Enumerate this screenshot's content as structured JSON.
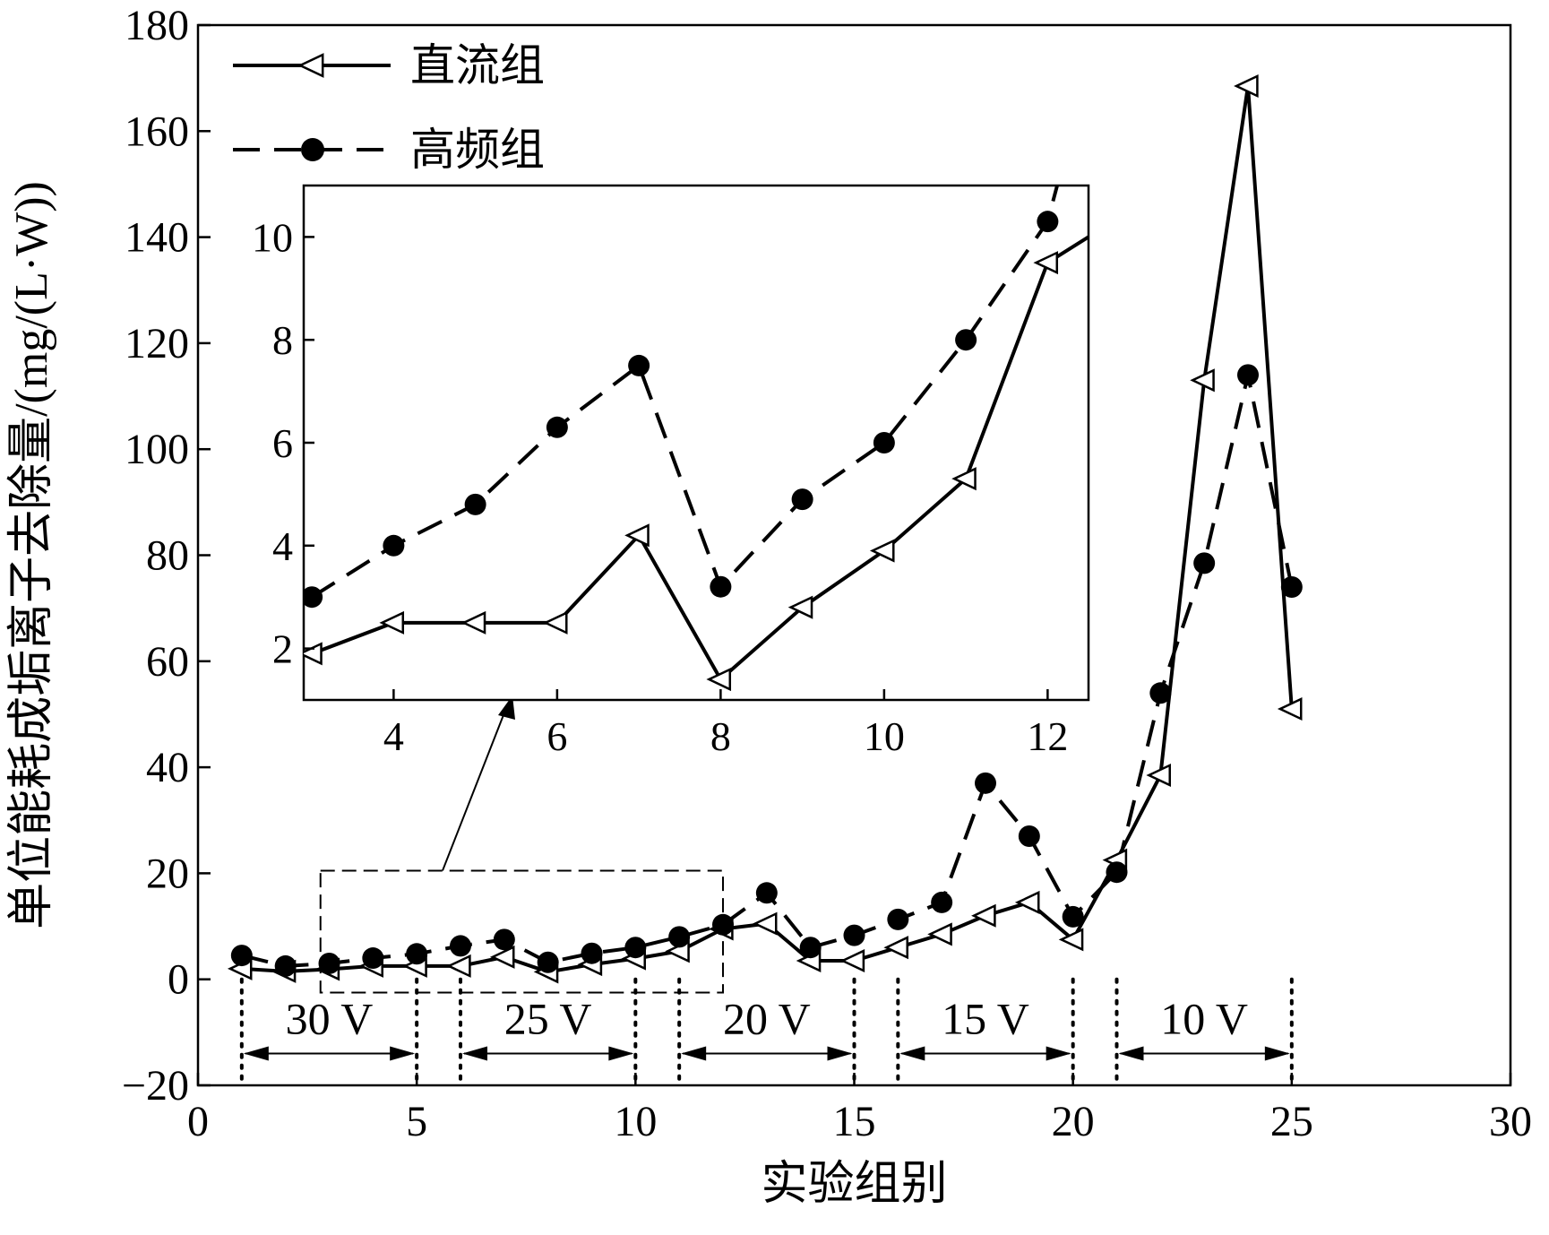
{
  "chart_data": {
    "type": "line",
    "title": "",
    "xlabel": "实验组别",
    "ylabel": "单位能耗成垢离子去除量/(mg/(L·W))",
    "xlim": [
      0,
      30
    ],
    "ylim": [
      -20,
      180
    ],
    "xticks": [
      "0",
      "5",
      "10",
      "15",
      "20",
      "25",
      "30"
    ],
    "yticks": [
      "−20",
      "0",
      "20",
      "40",
      "60",
      "80",
      "100",
      "120",
      "140",
      "160",
      "180"
    ],
    "legend_position": "top-left",
    "series": [
      {
        "name": "直流组",
        "marker": "open-left-triangle",
        "line": "solid",
        "x": [
          1,
          2,
          3,
          4,
          5,
          6,
          7,
          8,
          9,
          10,
          11,
          12,
          13,
          14,
          15,
          16,
          17,
          18,
          19,
          20,
          21,
          22,
          23,
          24,
          25
        ],
        "values": [
          2,
          1.5,
          1.9,
          2.5,
          2.5,
          2.5,
          4.2,
          1.4,
          2.8,
          3.9,
          5.3,
          9.5,
          10.5,
          3.5,
          3.5,
          6,
          8.5,
          12,
          14.5,
          7.5,
          22.5,
          38.5,
          113,
          168.5,
          51
        ]
      },
      {
        "name": "高频组",
        "marker": "filled-circle",
        "line": "dashed",
        "x": [
          1,
          2,
          3,
          4,
          5,
          6,
          7,
          8,
          9,
          10,
          11,
          12,
          13,
          14,
          15,
          16,
          17,
          18,
          19,
          20,
          21,
          22,
          23,
          24,
          25
        ],
        "values": [
          4.5,
          2.5,
          3,
          4,
          4.8,
          6.3,
          7.5,
          3.2,
          4.9,
          6,
          8,
          10.3,
          16.3,
          6,
          8.3,
          11.3,
          14.5,
          37,
          27,
          11.8,
          20.2,
          54,
          78.5,
          114,
          74
        ]
      }
    ],
    "sections": [
      {
        "label": "30 V",
        "from": 1,
        "to": 5
      },
      {
        "label": "25 V",
        "from": 6,
        "to": 10
      },
      {
        "label": "20 V",
        "from": 11,
        "to": 15
      },
      {
        "label": "15 V",
        "from": 16,
        "to": 20
      },
      {
        "label": "10 V",
        "from": 21,
        "to": 25
      }
    ],
    "inset": {
      "xlim": [
        2.9,
        12.5
      ],
      "ylim": [
        1,
        11
      ],
      "xticks": [
        "4",
        "6",
        "8",
        "10",
        "12"
      ],
      "yticks": [
        "2",
        "4",
        "6",
        "8",
        "10"
      ],
      "x_from": 3,
      "x_to": 12,
      "zoom_x": [
        2.8,
        12
      ],
      "zoom_y": [
        -2.5,
        20.5
      ]
    }
  }
}
